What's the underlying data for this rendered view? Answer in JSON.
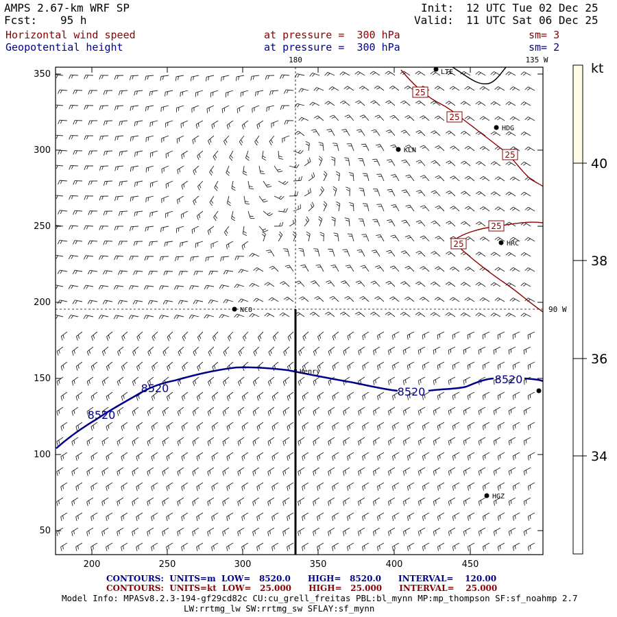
{
  "header": {
    "model": "AMPS 2.67-km WRF SP",
    "fcst_label": "Fcst:",
    "fcst_value": "95 h",
    "init_label": "Init:",
    "init_value": "12 UTC Tue 02 Dec 25",
    "valid_label": "Valid:",
    "valid_value": "11 UTC Sat 06 Dec 25"
  },
  "fields": [
    {
      "name": "Horizontal wind speed",
      "level": "at pressure =  300 hPa",
      "sm": "sm= 3",
      "color": "#8b0000"
    },
    {
      "name": "Geopotential height",
      "level": "at pressure =  300 hPa",
      "sm": "sm= 2",
      "color": "#00008b"
    }
  ],
  "map": {
    "x_ticks": [
      "200",
      "250",
      "300",
      "350",
      "400",
      "450"
    ],
    "y_ticks": [
      "350",
      "300",
      "250",
      "200",
      "150",
      "100",
      "50"
    ],
    "meridians": [
      {
        "label": "180"
      },
      {
        "label": "135 W"
      }
    ],
    "parallel_label": "90 W",
    "stations": [
      "KLN",
      "HDG",
      "HRC",
      "NCO",
      "Henry",
      "HGZ",
      "LTE"
    ],
    "height_contour_labels": [
      "8520",
      "8520",
      "8520",
      "8520"
    ],
    "wind_contour_labels": [
      "25",
      "25",
      "25",
      "25",
      "25"
    ]
  },
  "colorbar": {
    "unit": "kt",
    "labels": [
      "40",
      "38",
      "36",
      "34"
    ],
    "fill_color": "#fffbe6"
  },
  "footer": {
    "contours1": "CONTOURS:  UNITS=m  LOW=   8520.0      HIGH=   8520.0      INTERVAL=    120.00",
    "contours2": "CONTOURS:  UNITS=kt  LOW=   25.000      HIGH=   25.000      INTERVAL=    25.000",
    "model_info": "Model Info: MPASv8.2.3-194-gf29cd82c CU:cu_grell_freitas PBL:bl_mynn MP:mp_thompson SF:sf_noahmp 2.7",
    "model_info2": "LW:rrtmg_lw SW:rrtmg_sw SFLAY:sf_mynn"
  }
}
